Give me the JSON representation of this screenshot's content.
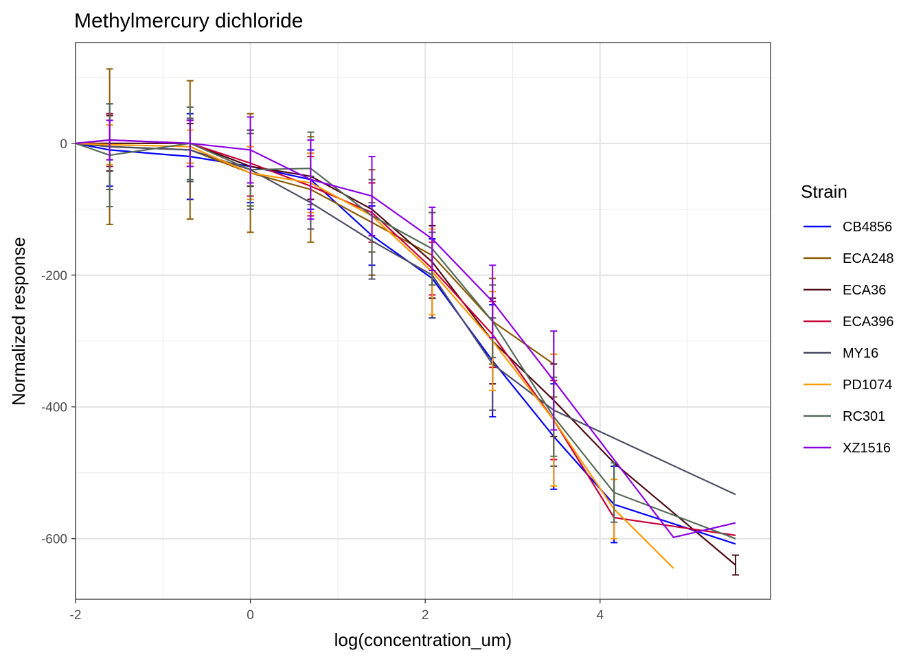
{
  "chart_data": {
    "type": "line",
    "title": "Methylmercury dichloride",
    "xlabel": "log(concentration_um)",
    "ylabel": "Normalized response",
    "xlim": [
      -2,
      5.95
    ],
    "ylim": [
      -692,
      153
    ],
    "x_ticks": [
      -2,
      0,
      2,
      4
    ],
    "x_tick_labels": [
      "-2",
      "0",
      "2",
      "4"
    ],
    "y_ticks": [
      -600,
      -400,
      -200,
      0
    ],
    "y_tick_labels": [
      "-600",
      "-400",
      "-200",
      "0"
    ],
    "grid": true,
    "legend": {
      "title": "Strain",
      "position": "right"
    },
    "error_bars": true,
    "series": [
      {
        "name": "CB4856",
        "color": "#0000FF",
        "x": [
          -2,
          -1.61,
          -0.69,
          0,
          0.69,
          1.39,
          2.08,
          2.77,
          3.47,
          4.16,
          5.55
        ],
        "y": [
          0,
          -10,
          -20,
          -35,
          -55,
          -140,
          -205,
          -330,
          -445,
          -548,
          -608
        ],
        "err": [
          0,
          55,
          65,
          55,
          45,
          45,
          60,
          85,
          80,
          58,
          0
        ]
      },
      {
        "name": "ECA248",
        "color": "#8B5A00",
        "x": [
          -2,
          -1.61,
          -0.69,
          0,
          0.69,
          1.39,
          2.08,
          2.77,
          3.47
        ],
        "y": [
          0,
          -5,
          -10,
          -45,
          -70,
          -120,
          -170,
          -270,
          -335
        ],
        "err": [
          0,
          118,
          105,
          90,
          80,
          80,
          65,
          65,
          50
        ]
      },
      {
        "name": "ECA36",
        "color": "#4D0A14",
        "x": [
          -2,
          -1.61,
          -0.69,
          0,
          0.69,
          1.39,
          2.08,
          2.77,
          3.47,
          4.16,
          5.55
        ],
        "y": [
          0,
          0,
          0,
          -35,
          -50,
          -100,
          -180,
          -300,
          -390,
          -485,
          -640
        ],
        "err": [
          0,
          42,
          30,
          30,
          35,
          40,
          55,
          65,
          55,
          0,
          15
        ]
      },
      {
        "name": "ECA396",
        "color": "#C70039",
        "x": [
          -2,
          -1.61,
          -0.69,
          0,
          0.69,
          1.39,
          2.08,
          2.77,
          3.47,
          4.16,
          5.55
        ],
        "y": [
          0,
          5,
          0,
          -30,
          -65,
          -105,
          -190,
          -290,
          -420,
          -568,
          -595
        ],
        "err": [
          0,
          40,
          35,
          50,
          45,
          45,
          40,
          50,
          60,
          0,
          0
        ]
      },
      {
        "name": "MY16",
        "color": "#4D4D66",
        "x": [
          -2,
          -1.61,
          -0.69,
          0,
          0.69,
          1.39,
          2.08,
          2.77,
          3.47,
          5.55
        ],
        "y": [
          0,
          -5,
          -10,
          -40,
          -90,
          -148,
          -200,
          -335,
          -405,
          -533
        ],
        "err": [
          0,
          65,
          48,
          60,
          40,
          58,
          65,
          70,
          85,
          0
        ]
      },
      {
        "name": "PD1074",
        "color": "#FF9900",
        "x": [
          -2,
          -1.61,
          -0.69,
          0,
          0.69,
          1.39,
          2.08,
          2.77,
          3.47,
          4.16,
          4.84
        ],
        "y": [
          0,
          -2,
          -5,
          -45,
          -60,
          -110,
          -195,
          -300,
          -420,
          -555,
          -645
        ],
        "err": [
          0,
          30,
          25,
          40,
          45,
          55,
          65,
          75,
          100,
          45,
          0
        ]
      },
      {
        "name": "RC301",
        "color": "#556B55",
        "x": [
          -2,
          -1.61,
          -0.69,
          0,
          0.69,
          1.39,
          2.08,
          2.77,
          3.47,
          4.16,
          5.55
        ],
        "y": [
          0,
          -18,
          0,
          -40,
          -38,
          -110,
          -160,
          -270,
          -415,
          -530,
          -600
        ],
        "err": [
          0,
          78,
          55,
          55,
          55,
          55,
          55,
          55,
          60,
          45,
          0
        ]
      },
      {
        "name": "XZ1516",
        "color": "#8B00E6",
        "x": [
          -2,
          -1.61,
          -0.69,
          0,
          0.69,
          1.39,
          2.08,
          2.77,
          3.47,
          4.16,
          4.84,
          5.55
        ],
        "y": [
          0,
          5,
          0,
          -10,
          -55,
          -80,
          -145,
          -240,
          -360,
          -480,
          -598,
          -576
        ],
        "err": [
          0,
          30,
          35,
          50,
          60,
          60,
          48,
          55,
          75,
          0,
          0,
          0
        ]
      }
    ]
  }
}
